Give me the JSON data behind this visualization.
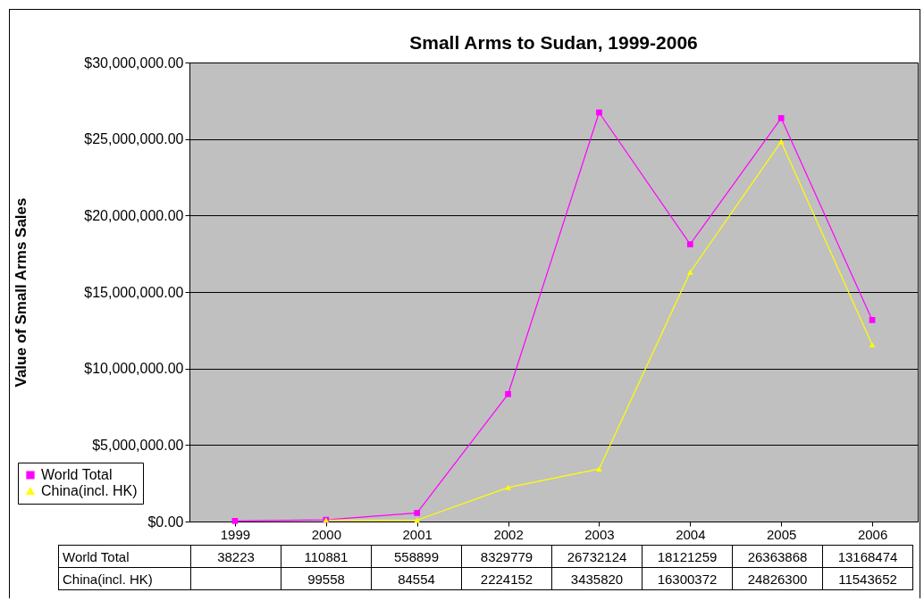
{
  "chart_data": {
    "type": "line",
    "title": "Small Arms to Sudan, 1999-2006",
    "ylabel": "Value of Small Arms Sales",
    "categories": [
      "1999",
      "2000",
      "2001",
      "2002",
      "2003",
      "2004",
      "2005",
      "2006"
    ],
    "series": [
      {
        "name": "World Total",
        "color": "#ff00ff",
        "marker": "square",
        "values": [
          38223,
          110881,
          558899,
          8329779,
          26732124,
          18121259,
          26363868,
          13168474
        ]
      },
      {
        "name": "China(incl. HK)",
        "color": "#ffff00",
        "marker": "triangle",
        "values": [
          null,
          99558,
          84554,
          2224152,
          3435820,
          16300372,
          24826300,
          11543652
        ]
      }
    ],
    "ylim": [
      0,
      30000000
    ],
    "yticks": [
      {
        "value": 0,
        "label": "$0.00"
      },
      {
        "value": 5000000,
        "label": "$5,000,000.00"
      },
      {
        "value": 10000000,
        "label": "$10,000,000.00"
      },
      {
        "value": 15000000,
        "label": "$15,000,000.00"
      },
      {
        "value": 20000000,
        "label": "$20,000,000.00"
      },
      {
        "value": 25000000,
        "label": "$25,000,000.00"
      },
      {
        "value": 30000000,
        "label": "$30,000,000.00"
      }
    ],
    "grid": "y",
    "legend": "bottom left",
    "data_labels": true
  }
}
